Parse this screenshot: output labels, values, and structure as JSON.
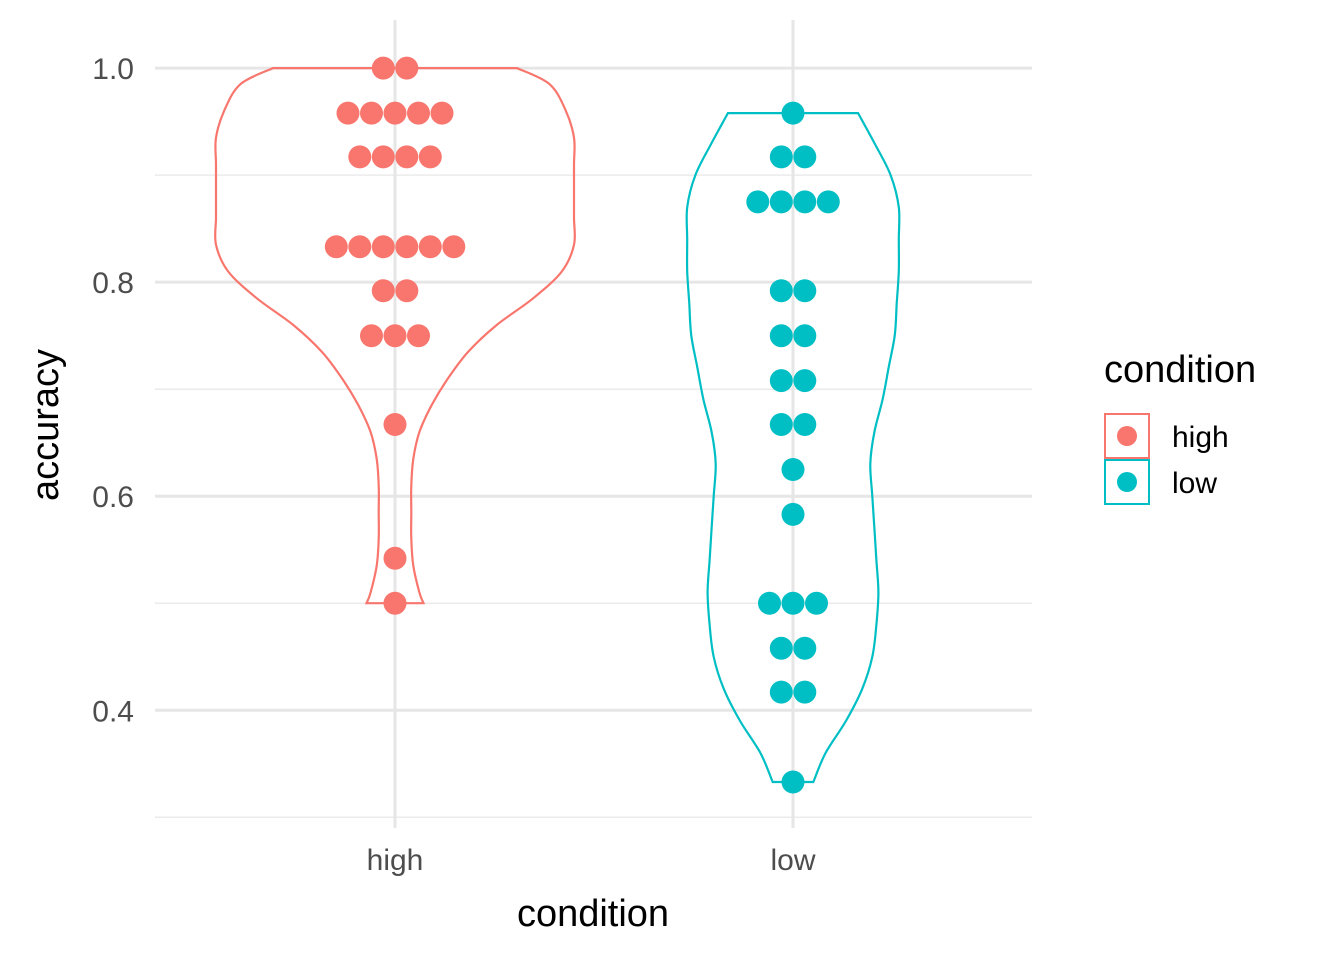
{
  "chart_data": {
    "type": "violin",
    "xlabel": "condition",
    "ylabel": "accuracy",
    "categories": [
      "high",
      "low"
    ],
    "ylim": [
      0.29,
      1.03
    ],
    "yticks": [
      0.4,
      0.6,
      0.8,
      1.0
    ],
    "ytick_labels": [
      "0.4",
      "0.6",
      "0.8",
      "1.0"
    ],
    "grid": true,
    "legend": {
      "title": "condition",
      "position": "right",
      "entries": [
        {
          "label": "high",
          "color": "#F8766D"
        },
        {
          "label": "low",
          "color": "#00BFC4"
        }
      ]
    },
    "series": [
      {
        "name": "high",
        "color": "#F8766D",
        "values": [
          1.0,
          1.0,
          0.958,
          0.958,
          0.958,
          0.958,
          0.958,
          0.917,
          0.917,
          0.917,
          0.917,
          0.833,
          0.833,
          0.833,
          0.833,
          0.833,
          0.833,
          0.792,
          0.792,
          0.75,
          0.75,
          0.75,
          0.667,
          0.542,
          0.5
        ],
        "violin_profile": [
          [
            1.0,
            0.3
          ],
          [
            0.985,
            0.38
          ],
          [
            0.96,
            0.42
          ],
          [
            0.935,
            0.44
          ],
          [
            0.91,
            0.44
          ],
          [
            0.885,
            0.44
          ],
          [
            0.86,
            0.44
          ],
          [
            0.835,
            0.44
          ],
          [
            0.81,
            0.41
          ],
          [
            0.785,
            0.34
          ],
          [
            0.76,
            0.25
          ],
          [
            0.735,
            0.18
          ],
          [
            0.71,
            0.13
          ],
          [
            0.685,
            0.09
          ],
          [
            0.66,
            0.06
          ],
          [
            0.635,
            0.045
          ],
          [
            0.61,
            0.04
          ],
          [
            0.585,
            0.04
          ],
          [
            0.56,
            0.04
          ],
          [
            0.535,
            0.045
          ],
          [
            0.51,
            0.06
          ],
          [
            0.5,
            0.07
          ]
        ]
      },
      {
        "name": "low",
        "color": "#00BFC4",
        "values": [
          0.958,
          0.917,
          0.917,
          0.875,
          0.875,
          0.875,
          0.875,
          0.792,
          0.792,
          0.75,
          0.75,
          0.708,
          0.708,
          0.667,
          0.667,
          0.625,
          0.583,
          0.5,
          0.5,
          0.5,
          0.458,
          0.458,
          0.417,
          0.417,
          0.333
        ],
        "violin_profile": [
          [
            0.958,
            0.16
          ],
          [
            0.93,
            0.2
          ],
          [
            0.9,
            0.24
          ],
          [
            0.87,
            0.26
          ],
          [
            0.84,
            0.26
          ],
          [
            0.81,
            0.26
          ],
          [
            0.78,
            0.255
          ],
          [
            0.75,
            0.25
          ],
          [
            0.72,
            0.235
          ],
          [
            0.69,
            0.22
          ],
          [
            0.66,
            0.2
          ],
          [
            0.63,
            0.19
          ],
          [
            0.6,
            0.195
          ],
          [
            0.57,
            0.2
          ],
          [
            0.54,
            0.205
          ],
          [
            0.51,
            0.21
          ],
          [
            0.48,
            0.205
          ],
          [
            0.45,
            0.195
          ],
          [
            0.42,
            0.17
          ],
          [
            0.39,
            0.13
          ],
          [
            0.36,
            0.08
          ],
          [
            0.333,
            0.05
          ]
        ]
      }
    ]
  }
}
